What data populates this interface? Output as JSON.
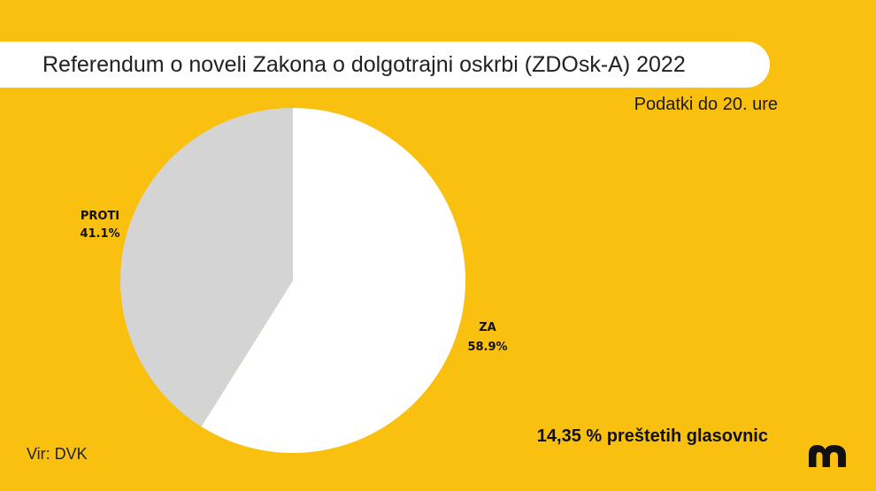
{
  "header": {
    "title": "Referendum o noveli Zakona o dolgotrajni oskrbi (ZDOsk-A) 2022",
    "subtitle": "Podatki do 20. ure"
  },
  "footer": {
    "source": "Vir: DVK",
    "counted_votes": "14,35 % preštetih glasovnic",
    "logo_icon": "m-logo-icon"
  },
  "colors": {
    "background": "#F9C00F",
    "za": "#FFFFFF",
    "proti": "#D4D4D4"
  },
  "chart_data": {
    "type": "pie",
    "title": "Referendum o noveli Zakona o dolgotrajni oskrbi (ZDOsk-A) 2022",
    "slices": [
      {
        "name": "ZA",
        "value": 58.9,
        "label": "58.9%",
        "color": "#FFFFFF"
      },
      {
        "name": "PROTI",
        "value": 41.1,
        "label": "41.1%",
        "color": "#D4D4D4"
      }
    ],
    "start_angle": "12 o'clock",
    "direction": "clockwise"
  }
}
